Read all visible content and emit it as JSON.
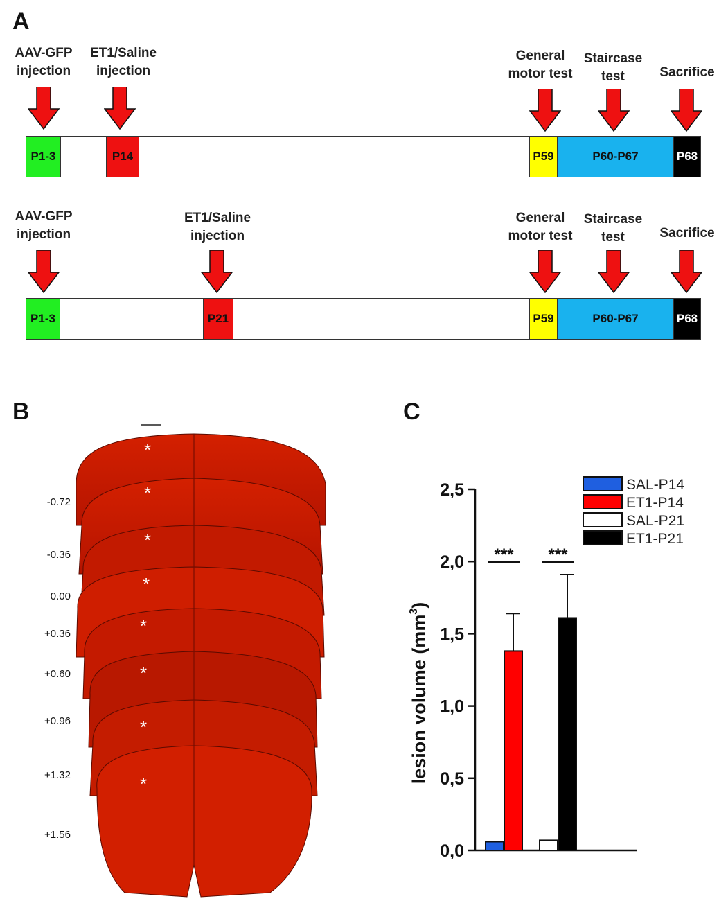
{
  "panels": {
    "a": "A",
    "b": "B",
    "c": "C"
  },
  "timeline1": {
    "arrows": [
      {
        "label": [
          "AAV-GFP",
          "injection"
        ]
      },
      {
        "label": [
          "ET1/Saline",
          "injection"
        ]
      },
      {
        "label": [
          "General",
          "motor test"
        ]
      },
      {
        "label": [
          "Staircase",
          "test"
        ]
      },
      {
        "label": [
          "Sacrifice"
        ]
      }
    ],
    "segments": [
      {
        "label": "P1-3",
        "color": "#22ee22"
      },
      {
        "label": "P14",
        "color": "#ee1111"
      },
      {
        "label": "P59",
        "color": "#ffff00"
      },
      {
        "label": "P60-P67",
        "color": "#19b2ee"
      },
      {
        "label": "P68",
        "color": "#000000",
        "text_color": "#ffffff"
      }
    ]
  },
  "timeline2": {
    "arrows": [
      {
        "label": [
          "AAV-GFP",
          "injection"
        ]
      },
      {
        "label": [
          "ET1/Saline",
          "injection"
        ]
      },
      {
        "label": [
          "General",
          "motor test"
        ]
      },
      {
        "label": [
          "Staircase",
          "test"
        ]
      },
      {
        "label": [
          "Sacrifice"
        ]
      }
    ],
    "segments": [
      {
        "label": "P1-3",
        "color": "#22ee22"
      },
      {
        "label": "P21",
        "color": "#ee1111"
      },
      {
        "label": "P59",
        "color": "#ffff00"
      },
      {
        "label": "P60-P67",
        "color": "#19b2ee"
      },
      {
        "label": "P68",
        "color": "#000000",
        "text_color": "#ffffff"
      }
    ]
  },
  "brain": {
    "coordinates": [
      "-0.72",
      "-0.36",
      "0.00",
      "+0.36",
      "+0.60",
      "+0.96",
      "+1.32",
      "+1.56"
    ],
    "lesion_marker": "*",
    "slice_color": "#cc1a00"
  },
  "chart_data": {
    "type": "bar",
    "ylabel": "lesion volume (mm",
    "ylabel_sup": "3",
    "ylabel_close": ")",
    "ylim": [
      0,
      2.5
    ],
    "yticks": [
      "0,0",
      "0,5",
      "1,0",
      "1,5",
      "2,0",
      "2,5"
    ],
    "series": [
      {
        "name": "SAL-P14",
        "value": 0.06,
        "error": 0.0,
        "color": "#1f5fe0"
      },
      {
        "name": "ET1-P14",
        "value": 1.38,
        "error": 0.26,
        "color": "#ff0000"
      },
      {
        "name": "SAL-P21",
        "value": 0.07,
        "error": 0.0,
        "color": "#ffffff"
      },
      {
        "name": "ET1-P21",
        "value": 1.61,
        "error": 0.3,
        "color": "#000000"
      }
    ],
    "significance": [
      "***",
      "***"
    ],
    "legend_position": "top-right"
  }
}
